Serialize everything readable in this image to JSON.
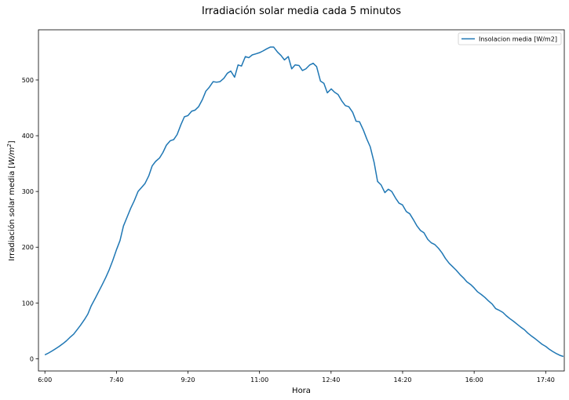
{
  "chart_data": {
    "type": "line",
    "title": "Irradiación solar media cada 5 minutos",
    "xlabel": "Hora",
    "ylabel": "Irradiación solar media [W/m²]",
    "ylabel_main": "Irradiación solar media [",
    "ylabel_unit": "W/m",
    "ylabel_exp": "2",
    "ylabel_close": "]",
    "xlim": [
      -0.15,
      12.1
    ],
    "ylim": [
      -22,
      590
    ],
    "x_ticks": [
      {
        "value": 0,
        "label": "6:00"
      },
      {
        "value": 1.6667,
        "label": "7:40"
      },
      {
        "value": 3.3333,
        "label": "9:20"
      },
      {
        "value": 5,
        "label": "11:00"
      },
      {
        "value": 6.6667,
        "label": "12:40"
      },
      {
        "value": 8.3333,
        "label": "14:20"
      },
      {
        "value": 10,
        "label": "16:00"
      },
      {
        "value": 11.6667,
        "label": "17:40"
      }
    ],
    "y_ticks": [
      0,
      100,
      200,
      300,
      400,
      500
    ],
    "legend": {
      "position": "top-right",
      "entries": [
        "Insolacion media [W/m2]"
      ]
    },
    "grid": false,
    "series": [
      {
        "name": "Insolacion media [W/m2]",
        "color": "#1f77b4",
        "x_unit": "hours since 6:00 (5-minute steps)",
        "points": [
          [
            0.0,
            7
          ],
          [
            0.08,
            10
          ],
          [
            0.17,
            14
          ],
          [
            0.25,
            18
          ],
          [
            0.33,
            22
          ],
          [
            0.42,
            27
          ],
          [
            0.5,
            32
          ],
          [
            0.58,
            38
          ],
          [
            0.67,
            44
          ],
          [
            0.75,
            52
          ],
          [
            0.83,
            60
          ],
          [
            0.92,
            70
          ],
          [
            1.0,
            80
          ],
          [
            1.08,
            95
          ],
          [
            1.17,
            108
          ],
          [
            1.25,
            120
          ],
          [
            1.33,
            132
          ],
          [
            1.42,
            146
          ],
          [
            1.5,
            160
          ],
          [
            1.58,
            176
          ],
          [
            1.67,
            196
          ],
          [
            1.75,
            212
          ],
          [
            1.83,
            238
          ],
          [
            1.92,
            255
          ],
          [
            2.0,
            270
          ],
          [
            2.08,
            283
          ],
          [
            2.17,
            300
          ],
          [
            2.25,
            307
          ],
          [
            2.33,
            314
          ],
          [
            2.42,
            328
          ],
          [
            2.5,
            346
          ],
          [
            2.58,
            354
          ],
          [
            2.67,
            360
          ],
          [
            2.75,
            370
          ],
          [
            2.83,
            383
          ],
          [
            2.92,
            391
          ],
          [
            3.0,
            393
          ],
          [
            3.08,
            402
          ],
          [
            3.17,
            420
          ],
          [
            3.25,
            434
          ],
          [
            3.33,
            436
          ],
          [
            3.42,
            444
          ],
          [
            3.5,
            446
          ],
          [
            3.58,
            452
          ],
          [
            3.67,
            465
          ],
          [
            3.75,
            480
          ],
          [
            3.83,
            487
          ],
          [
            3.92,
            497
          ],
          [
            4.0,
            496
          ],
          [
            4.08,
            497
          ],
          [
            4.17,
            503
          ],
          [
            4.25,
            512
          ],
          [
            4.33,
            516
          ],
          [
            4.42,
            505
          ],
          [
            4.5,
            527
          ],
          [
            4.58,
            525
          ],
          [
            4.67,
            542
          ],
          [
            4.75,
            540
          ],
          [
            4.83,
            545
          ],
          [
            4.92,
            547
          ],
          [
            5.0,
            549
          ],
          [
            5.08,
            552
          ],
          [
            5.17,
            556
          ],
          [
            5.25,
            559
          ],
          [
            5.33,
            559
          ],
          [
            5.42,
            550
          ],
          [
            5.5,
            544
          ],
          [
            5.58,
            536
          ],
          [
            5.67,
            542
          ],
          [
            5.75,
            520
          ],
          [
            5.83,
            527
          ],
          [
            5.92,
            526
          ],
          [
            6.0,
            517
          ],
          [
            6.08,
            520
          ],
          [
            6.17,
            527
          ],
          [
            6.25,
            530
          ],
          [
            6.33,
            524
          ],
          [
            6.42,
            498
          ],
          [
            6.5,
            494
          ],
          [
            6.58,
            477
          ],
          [
            6.67,
            484
          ],
          [
            6.75,
            478
          ],
          [
            6.83,
            474
          ],
          [
            6.92,
            462
          ],
          [
            7.0,
            454
          ],
          [
            7.08,
            452
          ],
          [
            7.17,
            442
          ],
          [
            7.25,
            426
          ],
          [
            7.33,
            425
          ],
          [
            7.42,
            410
          ],
          [
            7.5,
            394
          ],
          [
            7.58,
            380
          ],
          [
            7.67,
            352
          ],
          [
            7.75,
            318
          ],
          [
            7.83,
            312
          ],
          [
            7.92,
            298
          ],
          [
            8.0,
            304
          ],
          [
            8.08,
            300
          ],
          [
            8.17,
            288
          ],
          [
            8.25,
            279
          ],
          [
            8.33,
            276
          ],
          [
            8.42,
            264
          ],
          [
            8.5,
            260
          ],
          [
            8.58,
            250
          ],
          [
            8.67,
            238
          ],
          [
            8.75,
            230
          ],
          [
            8.83,
            226
          ],
          [
            8.92,
            214
          ],
          [
            9.0,
            208
          ],
          [
            9.08,
            205
          ],
          [
            9.17,
            198
          ],
          [
            9.25,
            190
          ],
          [
            9.33,
            180
          ],
          [
            9.42,
            171
          ],
          [
            9.5,
            165
          ],
          [
            9.58,
            159
          ],
          [
            9.67,
            151
          ],
          [
            9.75,
            145
          ],
          [
            9.83,
            138
          ],
          [
            9.92,
            133
          ],
          [
            10.0,
            127
          ],
          [
            10.08,
            120
          ],
          [
            10.17,
            115
          ],
          [
            10.25,
            110
          ],
          [
            10.33,
            104
          ],
          [
            10.42,
            98
          ],
          [
            10.5,
            90
          ],
          [
            10.58,
            87
          ],
          [
            10.67,
            83
          ],
          [
            10.75,
            77
          ],
          [
            10.83,
            72
          ],
          [
            10.92,
            67
          ],
          [
            11.0,
            62
          ],
          [
            11.08,
            57
          ],
          [
            11.17,
            52
          ],
          [
            11.25,
            46
          ],
          [
            11.33,
            41
          ],
          [
            11.42,
            36
          ],
          [
            11.5,
            31
          ],
          [
            11.58,
            26
          ],
          [
            11.67,
            22
          ],
          [
            11.75,
            17
          ],
          [
            11.83,
            13
          ],
          [
            11.92,
            9
          ],
          [
            12.0,
            6
          ],
          [
            12.08,
            4
          ]
        ]
      }
    ]
  }
}
